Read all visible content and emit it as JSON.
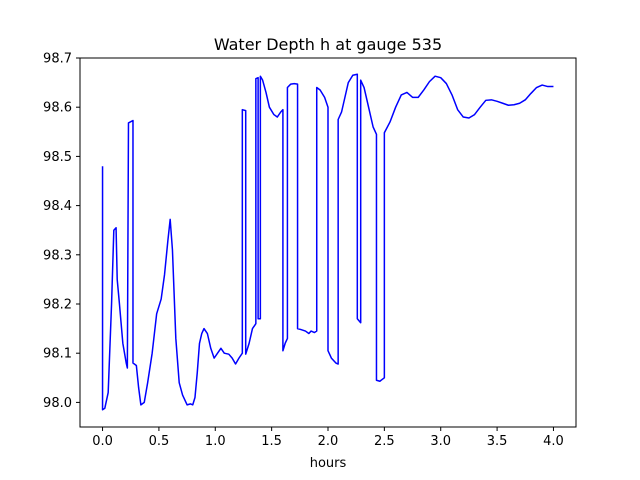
{
  "chart_data": {
    "type": "line",
    "title": "Water Depth h at gauge 535",
    "xlabel": "hours",
    "ylabel": "",
    "xlim": [
      -0.2,
      4.2
    ],
    "ylim": [
      97.95,
      98.7
    ],
    "xticks": [
      0.0,
      0.5,
      1.0,
      1.5,
      2.0,
      2.5,
      3.0,
      3.5,
      4.0
    ],
    "xtick_labels": [
      "0.0",
      "0.5",
      "1.0",
      "1.5",
      "2.0",
      "2.5",
      "3.0",
      "3.5",
      "4.0"
    ],
    "yticks": [
      98.0,
      98.1,
      98.2,
      98.3,
      98.4,
      98.5,
      98.6,
      98.7
    ],
    "ytick_labels": [
      "98.0",
      "98.1",
      "98.2",
      "98.3",
      "98.4",
      "98.5",
      "98.6",
      "98.7"
    ],
    "grid": false,
    "legend": "none",
    "series": [
      {
        "color": "#0000ff",
        "x": [
          0.0,
          0.0,
          0.02,
          0.05,
          0.08,
          0.1,
          0.12,
          0.13,
          0.15,
          0.18,
          0.21,
          0.22,
          0.23,
          0.23,
          0.27,
          0.27,
          0.3,
          0.32,
          0.34,
          0.37,
          0.4,
          0.44,
          0.48,
          0.52,
          0.55,
          0.58,
          0.6,
          0.62,
          0.65,
          0.68,
          0.71,
          0.75,
          0.78,
          0.8,
          0.82,
          0.84,
          0.86,
          0.88,
          0.9,
          0.93,
          0.96,
          0.99,
          1.02,
          1.05,
          1.08,
          1.12,
          1.15,
          1.18,
          1.21,
          1.24,
          1.24,
          1.27,
          1.27,
          1.3,
          1.33,
          1.36,
          1.36,
          1.38,
          1.38,
          1.4,
          1.4,
          1.42,
          1.45,
          1.48,
          1.52,
          1.55,
          1.58,
          1.6,
          1.6,
          1.62,
          1.64,
          1.64,
          1.67,
          1.7,
          1.73,
          1.73,
          1.76,
          1.8,
          1.83,
          1.85,
          1.88,
          1.9,
          1.9,
          1.93,
          1.97,
          2.0,
          2.0,
          2.03,
          2.07,
          2.09,
          2.09,
          2.12,
          2.15,
          2.18,
          2.22,
          2.26,
          2.26,
          2.29,
          2.29,
          2.32,
          2.36,
          2.4,
          2.43,
          2.43,
          2.46,
          2.5,
          2.5,
          2.55,
          2.6,
          2.65,
          2.7,
          2.75,
          2.8,
          2.85,
          2.9,
          2.95,
          3.0,
          3.05,
          3.1,
          3.15,
          3.2,
          3.25,
          3.3,
          3.35,
          3.4,
          3.45,
          3.5,
          3.55,
          3.6,
          3.65,
          3.7,
          3.75,
          3.8,
          3.85,
          3.9,
          3.95,
          4.0
        ],
        "y": [
          98.48,
          97.985,
          97.988,
          98.02,
          98.2,
          98.35,
          98.355,
          98.25,
          98.2,
          98.12,
          98.08,
          98.07,
          98.565,
          98.568,
          98.573,
          98.08,
          98.075,
          98.03,
          97.995,
          98.0,
          98.04,
          98.1,
          98.18,
          98.21,
          98.26,
          98.33,
          98.372,
          98.31,
          98.13,
          98.04,
          98.015,
          97.995,
          97.997,
          97.995,
          98.01,
          98.06,
          98.12,
          98.14,
          98.15,
          98.14,
          98.11,
          98.09,
          98.1,
          98.11,
          98.1,
          98.098,
          98.09,
          98.078,
          98.09,
          98.1,
          98.595,
          98.593,
          98.098,
          98.12,
          98.15,
          98.16,
          98.658,
          98.66,
          98.17,
          98.17,
          98.663,
          98.655,
          98.63,
          98.6,
          98.585,
          98.58,
          98.59,
          98.595,
          98.105,
          98.12,
          98.13,
          98.64,
          98.647,
          98.648,
          98.647,
          98.15,
          98.148,
          98.145,
          98.14,
          98.145,
          98.142,
          98.145,
          98.64,
          98.635,
          98.62,
          98.6,
          98.105,
          98.09,
          98.08,
          98.078,
          98.575,
          98.59,
          98.62,
          98.65,
          98.665,
          98.667,
          98.17,
          98.162,
          98.655,
          98.64,
          98.6,
          98.56,
          98.545,
          98.045,
          98.043,
          98.05,
          98.548,
          98.57,
          98.6,
          98.625,
          98.63,
          98.62,
          98.62,
          98.635,
          98.652,
          98.663,
          98.66,
          98.648,
          98.625,
          98.595,
          98.58,
          98.578,
          98.585,
          98.6,
          98.614,
          98.615,
          98.612,
          98.608,
          98.604,
          98.605,
          98.608,
          98.615,
          98.628,
          98.64,
          98.645,
          98.642,
          98.642
        ]
      }
    ]
  }
}
